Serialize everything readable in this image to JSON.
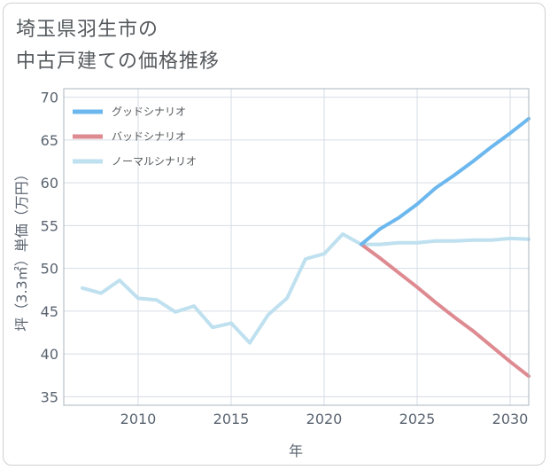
{
  "title": {
    "line1": "埼玉県羽生市の",
    "line2": "中古戸建ての価格推移"
  },
  "chart_data": {
    "type": "line",
    "xlabel": "年",
    "ylabel": "坪（3.3㎡）単価（万円）",
    "xlim": [
      2006,
      2031
    ],
    "ylim": [
      34,
      71
    ],
    "xticks": [
      2010,
      2015,
      2020,
      2025,
      2030
    ],
    "yticks": [
      35,
      40,
      45,
      50,
      55,
      60,
      65,
      70
    ],
    "grid": true,
    "legend_position": "top-left",
    "series": [
      {
        "name": "グッドシナリオ",
        "color": "#6cb8ee",
        "x": [
          2022,
          2023,
          2024,
          2025,
          2026,
          2027,
          2028,
          2029,
          2030,
          2031
        ],
        "values": [
          52.8,
          54.6,
          55.9,
          57.5,
          59.4,
          60.9,
          62.5,
          64.2,
          65.8,
          67.5
        ]
      },
      {
        "name": "バッドシナリオ",
        "color": "#de8a91",
        "x": [
          2022,
          2023,
          2024,
          2025,
          2026,
          2027,
          2028,
          2029,
          2030,
          2031
        ],
        "values": [
          52.8,
          51.2,
          49.5,
          47.8,
          46.0,
          44.3,
          42.7,
          40.9,
          39.1,
          37.4
        ]
      },
      {
        "name": "ノーマルシナリオ",
        "color": "#bfe0ef",
        "x": [
          2007,
          2008,
          2009,
          2010,
          2011,
          2012,
          2013,
          2014,
          2015,
          2016,
          2017,
          2018,
          2019,
          2020,
          2021,
          2022,
          2023,
          2024,
          2025,
          2026,
          2027,
          2028,
          2029,
          2030,
          2031
        ],
        "values": [
          47.7,
          47.1,
          48.6,
          46.5,
          46.3,
          44.9,
          45.6,
          43.1,
          43.6,
          41.3,
          44.6,
          46.5,
          51.1,
          51.7,
          54.0,
          52.8,
          52.8,
          53.0,
          53.0,
          53.2,
          53.2,
          53.3,
          53.3,
          53.5,
          53.4
        ]
      }
    ]
  }
}
